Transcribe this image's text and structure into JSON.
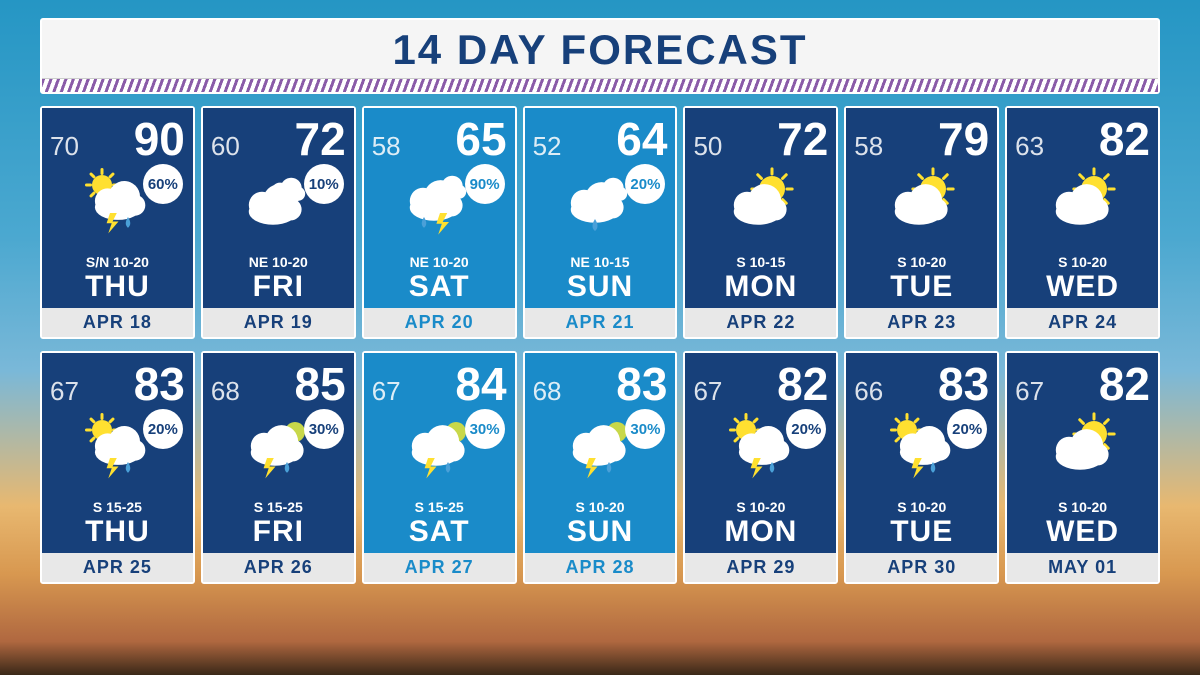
{
  "title": "14 DAY FORECAST",
  "colors": {
    "title_text": "#17407a",
    "card_dark": "#17407a",
    "card_light": "#1a8bc9",
    "date_text_dark": "#17407a",
    "date_text_light": "#1a8bc9",
    "precip_text_dark": "#17407a",
    "precip_text_light": "#1a8bc9",
    "white": "#ffffff",
    "date_bg": "#e8e8e8",
    "sun": "#ffe030",
    "cloud": "#ffffff",
    "bolt": "#ffe030",
    "drop": "#4aa0d8"
  },
  "days": [
    {
      "low": "70",
      "high": "90",
      "precip": "60%",
      "wind": "S/N 10-20",
      "dow": "THU",
      "date": "APR 18",
      "weekend": false,
      "icon": "storm-sun"
    },
    {
      "low": "60",
      "high": "72",
      "precip": "10%",
      "wind": "NE 10-20",
      "dow": "FRI",
      "date": "APR 19",
      "weekend": false,
      "icon": "cloudy"
    },
    {
      "low": "58",
      "high": "65",
      "precip": "90%",
      "wind": "NE 10-20",
      "dow": "SAT",
      "date": "APR 20",
      "weekend": true,
      "icon": "storm"
    },
    {
      "low": "52",
      "high": "64",
      "precip": "20%",
      "wind": "NE 10-15",
      "dow": "SUN",
      "date": "APR 21",
      "weekend": true,
      "icon": "cloudy-drop"
    },
    {
      "low": "50",
      "high": "72",
      "precip": "",
      "wind": "S 10-15",
      "dow": "MON",
      "date": "APR 22",
      "weekend": false,
      "icon": "partly-sunny"
    },
    {
      "low": "58",
      "high": "79",
      "precip": "",
      "wind": "S 10-20",
      "dow": "TUE",
      "date": "APR 23",
      "weekend": false,
      "icon": "partly-sunny"
    },
    {
      "low": "63",
      "high": "82",
      "precip": "",
      "wind": "S 10-20",
      "dow": "WED",
      "date": "APR 24",
      "weekend": false,
      "icon": "partly-sunny"
    },
    {
      "low": "67",
      "high": "83",
      "precip": "20%",
      "wind": "S 15-25",
      "dow": "THU",
      "date": "APR 25",
      "weekend": false,
      "icon": "storm-sun"
    },
    {
      "low": "68",
      "high": "85",
      "precip": "30%",
      "wind": "S 15-25",
      "dow": "FRI",
      "date": "APR 26",
      "weekend": false,
      "icon": "storm-sun-green"
    },
    {
      "low": "67",
      "high": "84",
      "precip": "30%",
      "wind": "S 15-25",
      "dow": "SAT",
      "date": "APR 27",
      "weekend": true,
      "icon": "storm-sun-green"
    },
    {
      "low": "68",
      "high": "83",
      "precip": "30%",
      "wind": "S 10-20",
      "dow": "SUN",
      "date": "APR 28",
      "weekend": true,
      "icon": "storm-sun-green"
    },
    {
      "low": "67",
      "high": "82",
      "precip": "20%",
      "wind": "S 10-20",
      "dow": "MON",
      "date": "APR 29",
      "weekend": false,
      "icon": "storm-sun"
    },
    {
      "low": "66",
      "high": "83",
      "precip": "20%",
      "wind": "S 10-20",
      "dow": "TUE",
      "date": "APR 30",
      "weekend": false,
      "icon": "storm-sun"
    },
    {
      "low": "67",
      "high": "82",
      "precip": "",
      "wind": "S 10-20",
      "dow": "WED",
      "date": "MAY 01",
      "weekend": false,
      "icon": "partly-sunny"
    }
  ]
}
